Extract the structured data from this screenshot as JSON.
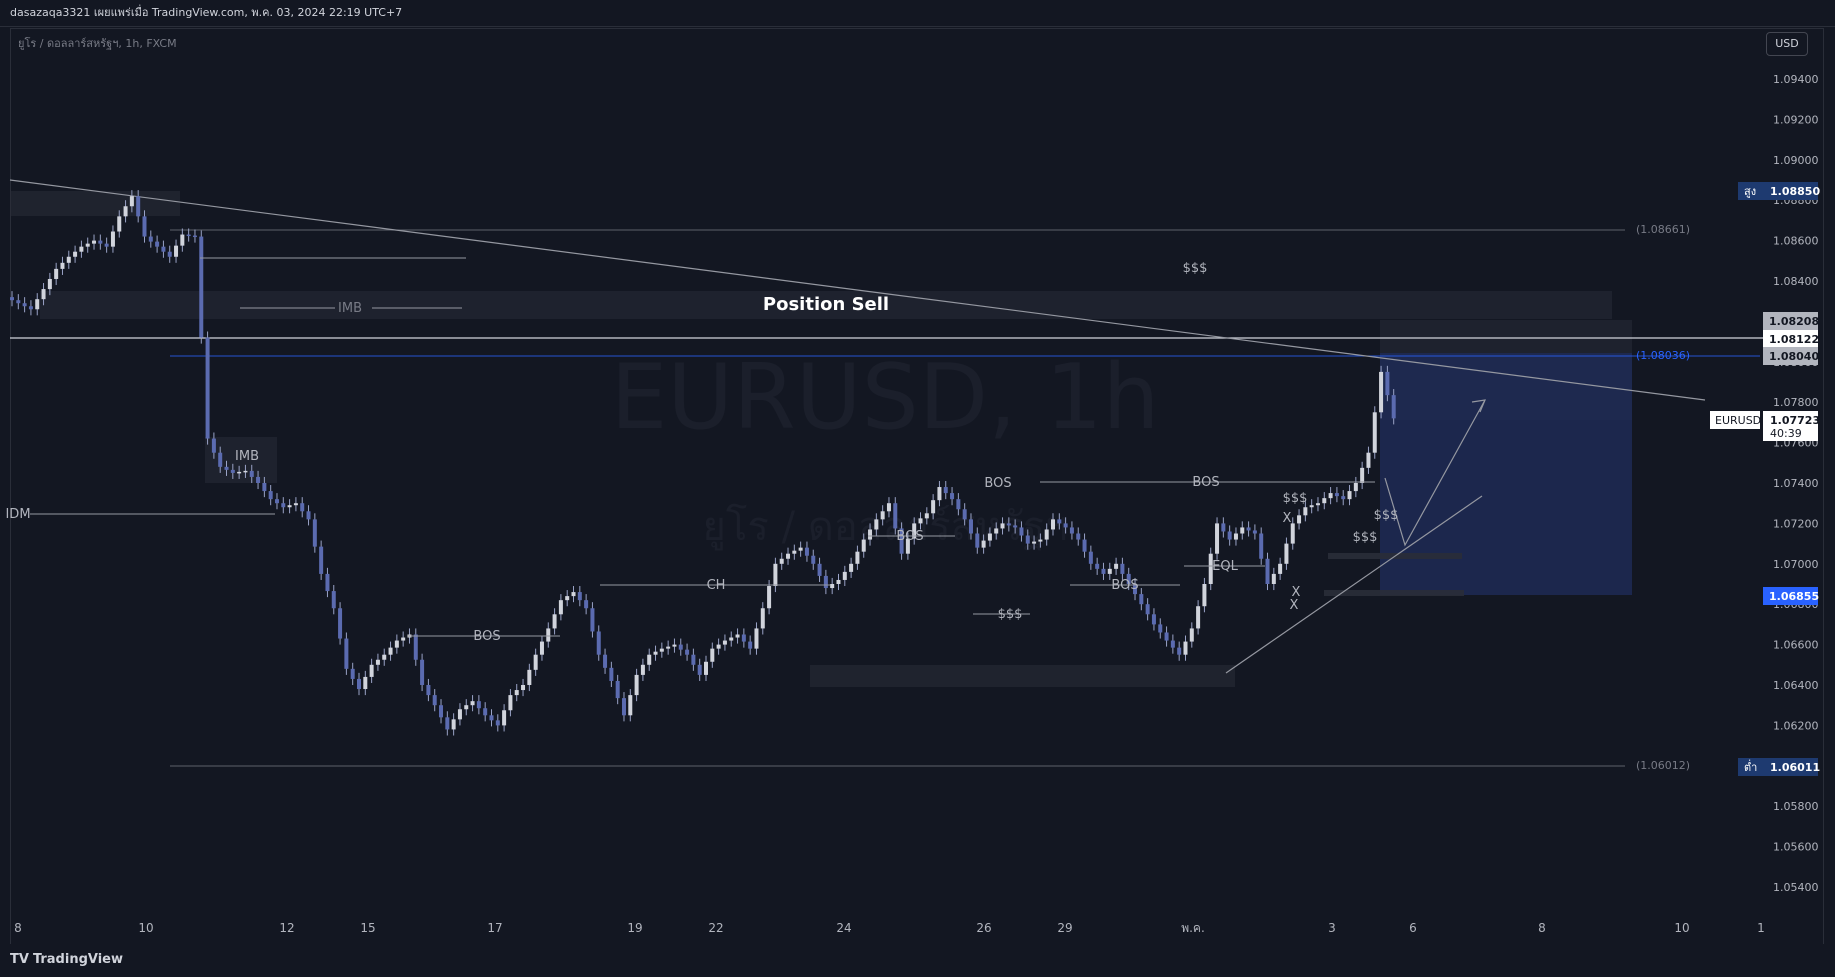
{
  "header": {
    "info": "dasazaqa3321 เผยแพร่เมื่อ TradingView.com, พ.ค. 03, 2024 22:19 UTC+7"
  },
  "symbol_line": "ยูโร / ดอลลาร์สหรัฐฯ, 1h, FXCM",
  "currency_button": "USD",
  "watermark": {
    "main": "EURUSD, 1h",
    "sub": "ยูโร / ดอลลาร์สหรัฐฯ"
  },
  "brand": {
    "name": "TradingView",
    "logo": "TV"
  },
  "colors": {
    "background": "#131722",
    "blue_zone": "#1e2a55",
    "label_blue": "#2962ff",
    "label_navy": "#1e3a70"
  },
  "chart_data": {
    "type": "candlestick",
    "symbol": "EURUSD",
    "timeframe": "1h",
    "title": "ยูโร / ดอลลาร์สหรัฐฯ, 1h, FXCM",
    "ylim": [
      1.053,
      1.096
    ],
    "y_ticks": [
      "1.09400",
      "1.09200",
      "1.09000",
      "1.08800",
      "1.08600",
      "1.08400",
      "1.08200",
      "1.08000",
      "1.07800",
      "1.07600",
      "1.07400",
      "1.07200",
      "1.07000",
      "1.06800",
      "1.06600",
      "1.06400",
      "1.06200",
      "1.06000",
      "1.05800",
      "1.05600",
      "1.05400"
    ],
    "x_ticks": [
      "8",
      "10",
      "12",
      "15",
      "17",
      "19",
      "22",
      "24",
      "26",
      "29",
      "พ.ค.",
      "3",
      "6",
      "8",
      "10",
      "1"
    ],
    "price_labels": [
      {
        "label": "สูง",
        "value": "1.08850"
      },
      {
        "value": "1.08208"
      },
      {
        "value": "1.08122"
      },
      {
        "value": "1.08040"
      },
      {
        "symbol": "EURUSD",
        "value": "1.07723",
        "countdown": "40:39"
      },
      {
        "value": "1.06855"
      },
      {
        "label": "ต่ำ",
        "value": "1.06011"
      }
    ],
    "level_annotations": [
      "(1.08661)",
      "(1.08036)",
      "(1.06012)"
    ],
    "annotations": [
      "Position Sell",
      "IMB",
      "IDM",
      "BOS",
      "CH",
      "BOS",
      "BOS",
      "BOS",
      "$$$",
      "BOS",
      "EQL",
      "$$$",
      "$$$",
      "$$$",
      "X",
      "X",
      "X",
      "$$$"
    ],
    "close_path": [
      [
        0,
        1.0832
      ],
      [
        2,
        1.0829
      ],
      [
        4,
        1.0826
      ],
      [
        6,
        1.0836
      ],
      [
        8,
        1.0846
      ],
      [
        10,
        1.0852
      ],
      [
        12,
        1.0857
      ],
      [
        14,
        1.086
      ],
      [
        16,
        1.0857
      ],
      [
        18,
        1.0872
      ],
      [
        20,
        1.0882
      ],
      [
        22,
        1.0862
      ],
      [
        24,
        1.0857
      ],
      [
        26,
        1.0852
      ],
      [
        28,
        1.0863
      ],
      [
        30,
        1.0862
      ],
      [
        32,
        1.0762
      ],
      [
        34,
        1.0748
      ],
      [
        36,
        1.0745
      ],
      [
        38,
        1.0746
      ],
      [
        40,
        1.074
      ],
      [
        42,
        1.0732
      ],
      [
        44,
        1.0728
      ],
      [
        46,
        1.073
      ],
      [
        48,
        1.0722
      ],
      [
        50,
        1.0695
      ],
      [
        52,
        1.0678
      ],
      [
        54,
        1.0648
      ],
      [
        56,
        1.0638
      ],
      [
        58,
        1.065
      ],
      [
        60,
        1.0655
      ],
      [
        62,
        1.0662
      ],
      [
        64,
        1.0665
      ],
      [
        66,
        1.064
      ],
      [
        68,
        1.063
      ],
      [
        70,
        1.0618
      ],
      [
        72,
        1.0628
      ],
      [
        74,
        1.0632
      ],
      [
        76,
        1.0625
      ],
      [
        78,
        1.062
      ],
      [
        80,
        1.0635
      ],
      [
        82,
        1.064
      ],
      [
        84,
        1.0655
      ],
      [
        86,
        1.0668
      ],
      [
        88,
        1.0682
      ],
      [
        90,
        1.0686
      ],
      [
        92,
        1.0678
      ],
      [
        94,
        1.0655
      ],
      [
        96,
        1.0642
      ],
      [
        98,
        1.0625
      ],
      [
        100,
        1.0645
      ],
      [
        102,
        1.0655
      ],
      [
        104,
        1.0658
      ],
      [
        106,
        1.066
      ],
      [
        108,
        1.0655
      ],
      [
        110,
        1.0645
      ],
      [
        112,
        1.0658
      ],
      [
        114,
        1.0662
      ],
      [
        116,
        1.0665
      ],
      [
        118,
        1.0658
      ],
      [
        120,
        1.0678
      ],
      [
        122,
        1.07
      ],
      [
        124,
        1.0705
      ],
      [
        126,
        1.0708
      ],
      [
        128,
        1.07
      ],
      [
        130,
        1.0688
      ],
      [
        132,
        1.0692
      ],
      [
        134,
        1.07
      ],
      [
        136,
        1.0712
      ],
      [
        138,
        1.0722
      ],
      [
        140,
        1.073
      ],
      [
        142,
        1.0705
      ],
      [
        144,
        1.072
      ],
      [
        146,
        1.0725
      ],
      [
        148,
        1.0738
      ],
      [
        150,
        1.0732
      ],
      [
        152,
        1.0722
      ],
      [
        154,
        1.0708
      ],
      [
        156,
        1.0715
      ],
      [
        158,
        1.072
      ],
      [
        160,
        1.0718
      ],
      [
        162,
        1.071
      ],
      [
        164,
        1.0712
      ],
      [
        166,
        1.0722
      ],
      [
        168,
        1.0718
      ],
      [
        170,
        1.0712
      ],
      [
        172,
        1.07
      ],
      [
        174,
        1.0695
      ],
      [
        176,
        1.07
      ],
      [
        178,
        1.069
      ],
      [
        180,
        1.068
      ],
      [
        182,
        1.067
      ],
      [
        184,
        1.0662
      ],
      [
        186,
        1.0655
      ],
      [
        188,
        1.0668
      ],
      [
        190,
        1.069
      ],
      [
        192,
        1.072
      ],
      [
        194,
        1.0712
      ],
      [
        196,
        1.0718
      ],
      [
        198,
        1.0715
      ],
      [
        200,
        1.069
      ],
      [
        202,
        1.07
      ],
      [
        204,
        1.072
      ],
      [
        206,
        1.0728
      ],
      [
        208,
        1.073
      ],
      [
        210,
        1.0735
      ],
      [
        212,
        1.0732
      ],
      [
        214,
        1.074
      ],
      [
        216,
        1.0755
      ],
      [
        218,
        1.0795
      ],
      [
        220,
        1.0772
      ]
    ]
  }
}
